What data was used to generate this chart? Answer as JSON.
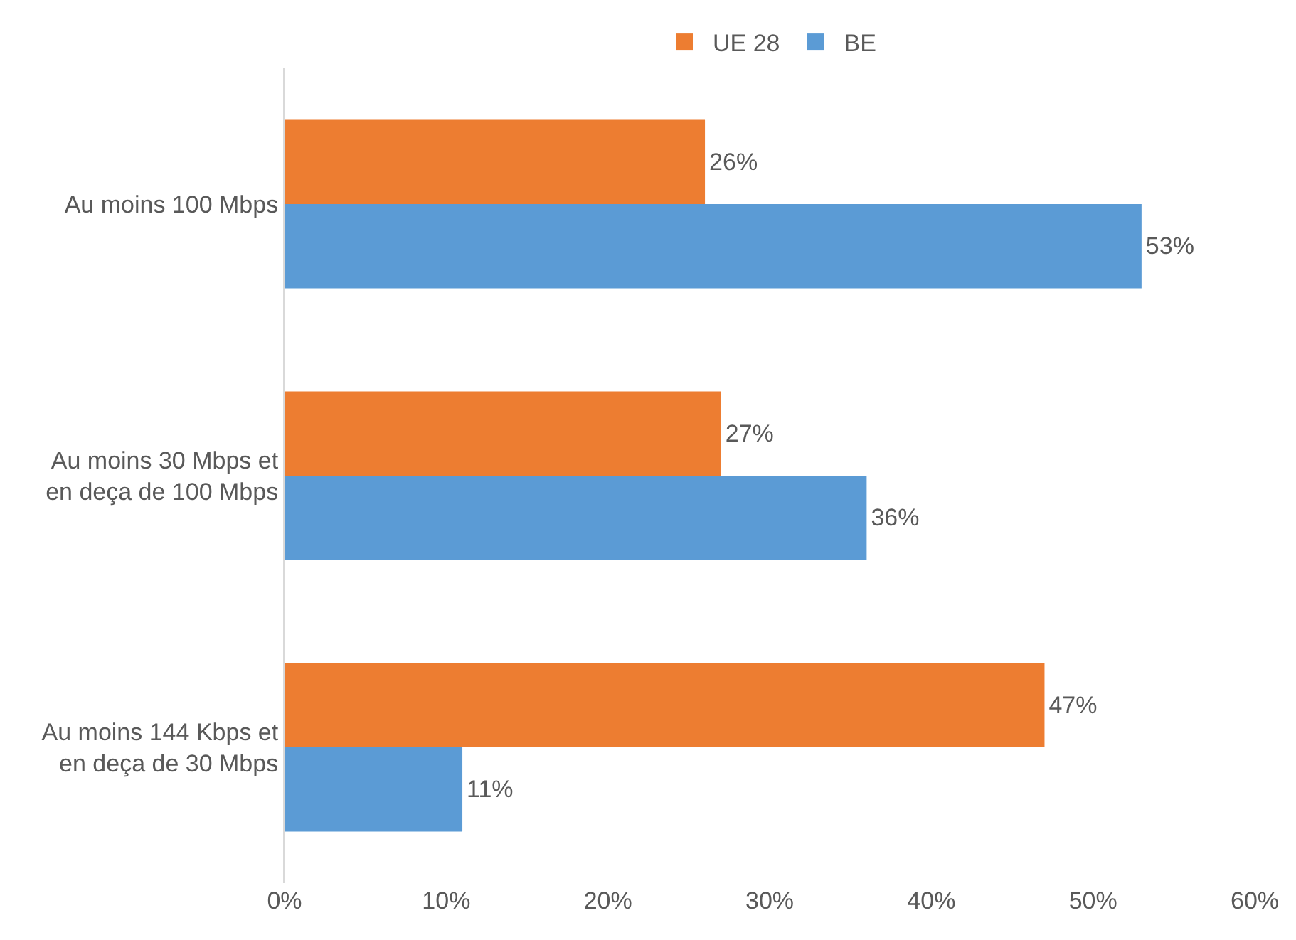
{
  "chart_data": {
    "type": "bar",
    "orientation": "horizontal",
    "categories": [
      "Au moins 100 Mbps",
      "Au moins 30 Mbps et\nen deça de 100 Mbps",
      "Au moins 144 Kbps et\nen deça de 30 Mbps"
    ],
    "series": [
      {
        "name": "UE 28",
        "color": "#ed7d31",
        "values": [
          26,
          27,
          47
        ],
        "value_labels": [
          "26%",
          "27%",
          "47%"
        ]
      },
      {
        "name": "BE",
        "color": "#5b9bd5",
        "values": [
          53,
          36,
          11
        ],
        "value_labels": [
          "53%",
          "36%",
          "11%"
        ]
      }
    ],
    "xlim": [
      0,
      60
    ],
    "xticks": [
      {
        "value": 0,
        "label": "0%"
      },
      {
        "value": 10,
        "label": "10%"
      },
      {
        "value": 20,
        "label": "20%"
      },
      {
        "value": 30,
        "label": "30%"
      },
      {
        "value": 40,
        "label": "40%"
      },
      {
        "value": 50,
        "label": "50%"
      },
      {
        "value": 60,
        "label": "60%"
      }
    ],
    "legend": "top"
  }
}
